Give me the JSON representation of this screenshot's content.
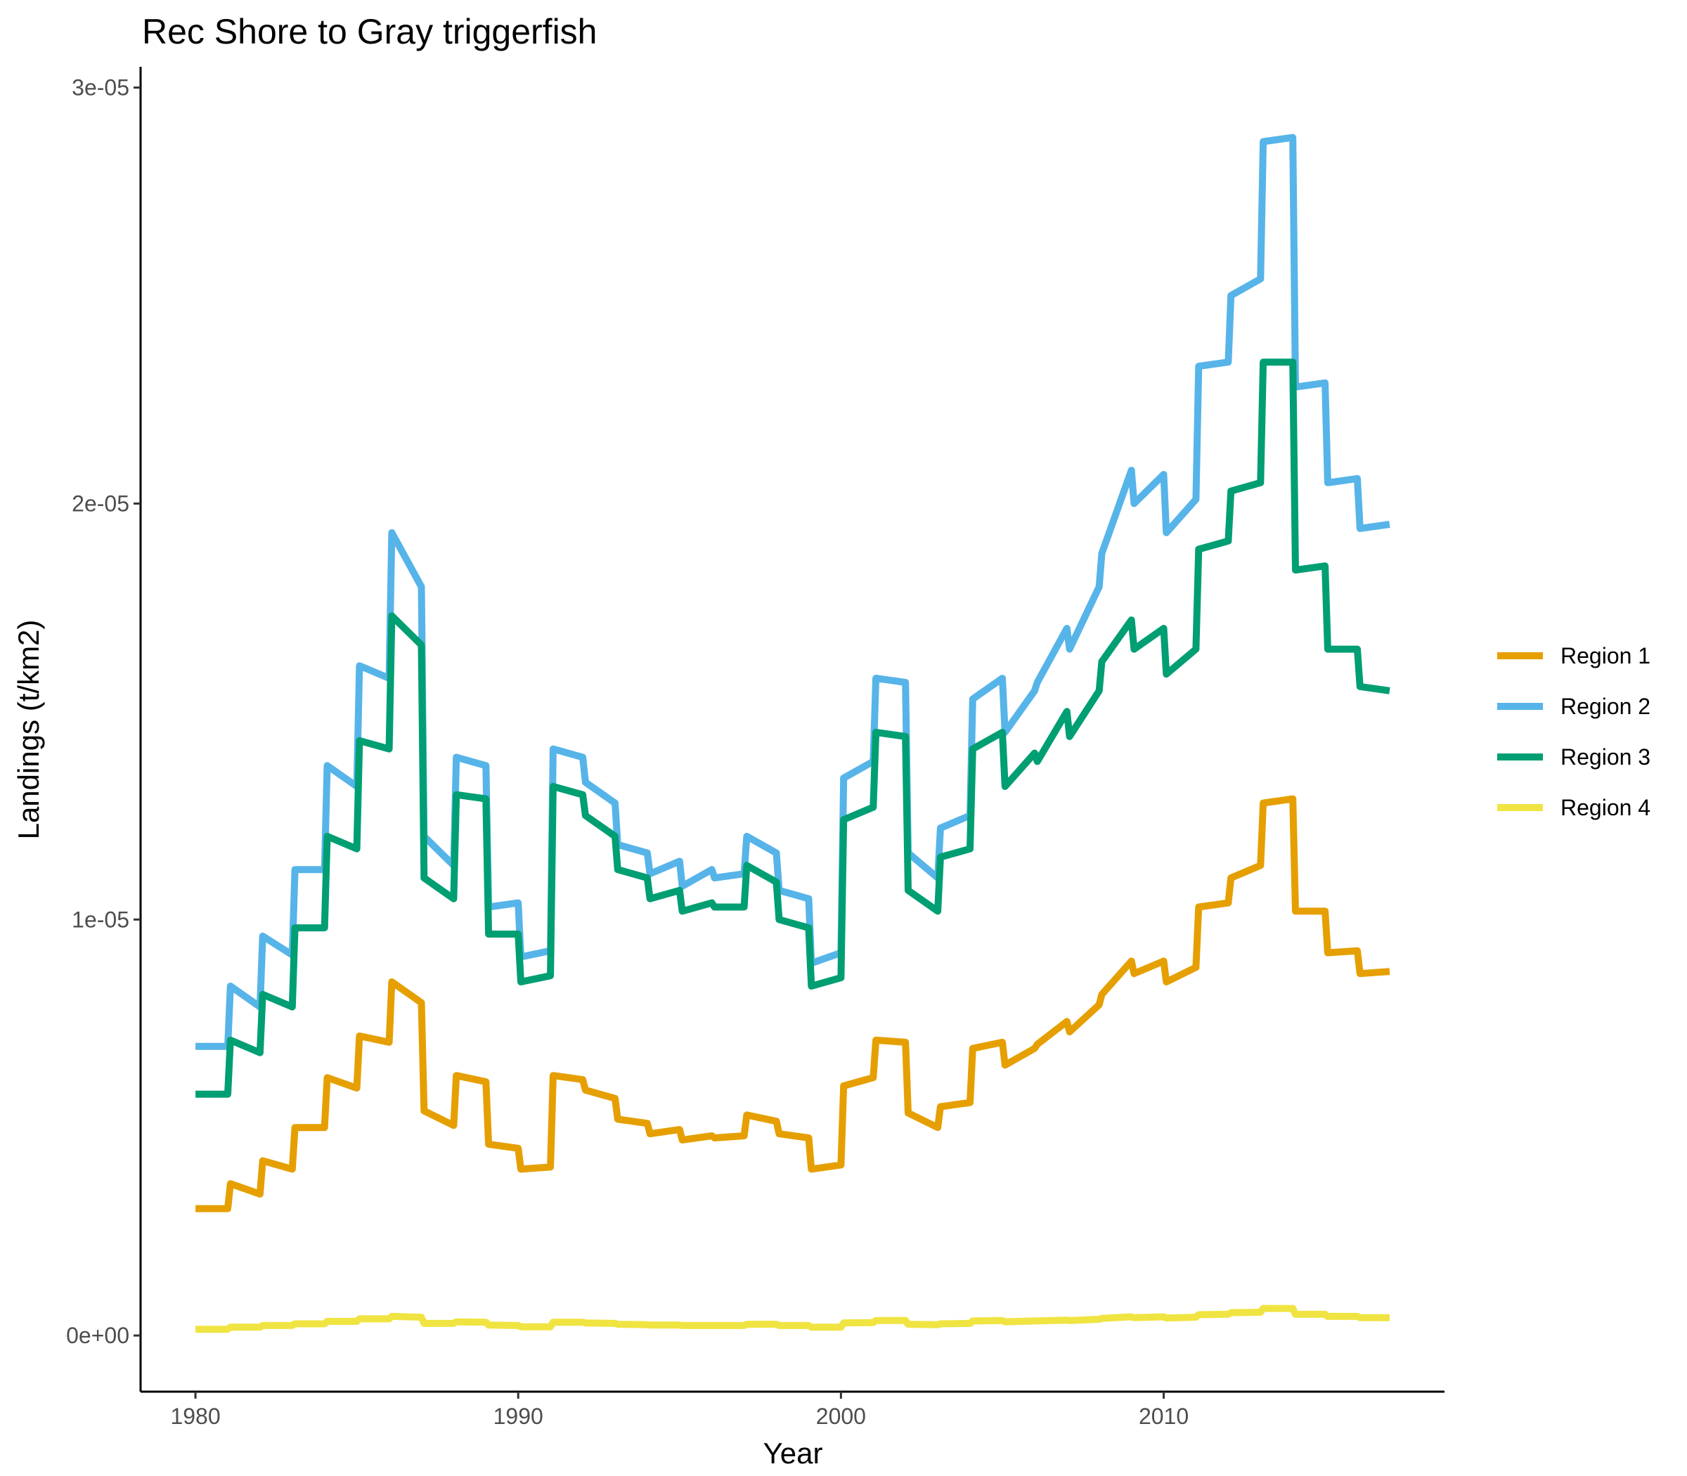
{
  "chart_data": {
    "type": "line",
    "title": "Rec Shore to Gray triggerfish",
    "xlabel": "Year",
    "ylabel": "Landings (t/km2)",
    "xlim": [
      1978.3,
      2018.7
    ],
    "ylim": [
      -1.35e-06,
      3.05e-05
    ],
    "x_ticks": [
      1980,
      1990,
      2000,
      2010
    ],
    "x_tick_labels": [
      "1980",
      "1990",
      "2000",
      "2010"
    ],
    "y_ticks": [
      0,
      1e-05,
      2e-05,
      3e-05
    ],
    "y_tick_labels": [
      "0e+00",
      "1e-05",
      "2e-05",
      "3e-05"
    ],
    "grid": false,
    "legend_position": "right",
    "x": [
      1980.0,
      1981.0,
      1981.083,
      1982.0,
      1982.083,
      1983.0,
      1983.083,
      1984.0,
      1984.083,
      1985.0,
      1985.083,
      1986.0,
      1986.083,
      1987.0,
      1987.083,
      1988.0,
      1988.083,
      1989.0,
      1989.083,
      1990.0,
      1990.083,
      1991.0,
      1991.083,
      1992.0,
      1992.083,
      1993.0,
      1993.083,
      1994.0,
      1994.083,
      1995.0,
      1995.083,
      1996.0,
      1996.083,
      1997.0,
      1997.083,
      1998.0,
      1998.083,
      1999.0,
      1999.083,
      2000.0,
      2000.083,
      2001.0,
      2001.083,
      2002.0,
      2002.083,
      2003.0,
      2003.083,
      2004.0,
      2004.083,
      2005.0,
      2005.083,
      2006.0,
      2006.083,
      2007.0,
      2007.083,
      2008.0,
      2008.083,
      2009.0,
      2009.083,
      2010.0,
      2010.083,
      2011.0,
      2011.083,
      2012.0,
      2012.083,
      2013.0,
      2013.083,
      2014.0,
      2014.083,
      2015.0,
      2015.083,
      2016.0,
      2016.083,
      2017.0
    ],
    "series": [
      {
        "name": "Region 1",
        "color": "#E69F00",
        "values": [
          3.05e-06,
          3.05e-06,
          3.65e-06,
          3.4e-06,
          4.2e-06,
          4e-06,
          5e-06,
          5e-06,
          6.2e-06,
          5.95e-06,
          7.2e-06,
          7.05e-06,
          8.5e-06,
          8e-06,
          5.4e-06,
          5.05e-06,
          6.25e-06,
          6.1e-06,
          4.6e-06,
          4.5e-06,
          4e-06,
          4.05e-06,
          6.25e-06,
          6.15e-06,
          5.9e-06,
          5.7e-06,
          5.2e-06,
          5.1e-06,
          4.85e-06,
          4.95e-06,
          4.7e-06,
          4.8e-06,
          4.75e-06,
          4.8e-06,
          5.3e-06,
          5.15e-06,
          4.85e-06,
          4.75e-06,
          4e-06,
          4.1e-06,
          6e-06,
          6.2e-06,
          7.1e-06,
          7.05e-06,
          5.35e-06,
          5e-06,
          5.5e-06,
          5.6e-06,
          6.9e-06,
          7.05e-06,
          6.5e-06,
          6.9e-06,
          7e-06,
          7.55e-06,
          7.3e-06,
          7.95e-06,
          8.2e-06,
          9e-06,
          8.7e-06,
          9e-06,
          8.5e-06,
          8.85e-06,
          1.03e-05,
          1.04e-05,
          1.1e-05,
          1.13e-05,
          1.28e-05,
          1.29e-05,
          1.02e-05,
          1.02e-05,
          9.2e-06,
          9.25e-06,
          8.7e-06,
          8.75e-06
        ]
      },
      {
        "name": "Region 2",
        "color": "#56B4E9",
        "values": [
          6.95e-06,
          6.95e-06,
          8.4e-06,
          7.9e-06,
          9.6e-06,
          9.15e-06,
          1.12e-05,
          1.12e-05,
          1.37e-05,
          1.32e-05,
          1.61e-05,
          1.58e-05,
          1.93e-05,
          1.8e-05,
          1.2e-05,
          1.13e-05,
          1.39e-05,
          1.37e-05,
          1.03e-05,
          1.04e-05,
          9.1e-06,
          9.25e-06,
          1.41e-05,
          1.39e-05,
          1.33e-05,
          1.28e-05,
          1.18e-05,
          1.16e-05,
          1.11e-05,
          1.14e-05,
          1.08e-05,
          1.12e-05,
          1.1e-05,
          1.11e-05,
          1.2e-05,
          1.16e-05,
          1.07e-05,
          1.05e-05,
          8.95e-06,
          9.2e-06,
          1.34e-05,
          1.38e-05,
          1.58e-05,
          1.57e-05,
          1.16e-05,
          1.1e-05,
          1.22e-05,
          1.25e-05,
          1.53e-05,
          1.58e-05,
          1.45e-05,
          1.55e-05,
          1.57e-05,
          1.7e-05,
          1.65e-05,
          1.8e-05,
          1.88e-05,
          2.08e-05,
          2e-05,
          2.07e-05,
          1.93e-05,
          2.01e-05,
          2.33e-05,
          2.34e-05,
          2.5e-05,
          2.54e-05,
          2.87e-05,
          2.88e-05,
          2.28e-05,
          2.29e-05,
          2.05e-05,
          2.06e-05,
          1.94e-05,
          1.95e-05
        ]
      },
      {
        "name": "Region 3",
        "color": "#009E73",
        "values": [
          5.8e-06,
          5.8e-06,
          7.1e-06,
          6.8e-06,
          8.2e-06,
          7.9e-06,
          9.8e-06,
          9.8e-06,
          1.2e-05,
          1.17e-05,
          1.43e-05,
          1.41e-05,
          1.73e-05,
          1.66e-05,
          1.1e-05,
          1.05e-05,
          1.3e-05,
          1.29e-05,
          9.65e-06,
          9.65e-06,
          8.5e-06,
          8.65e-06,
          1.32e-05,
          1.3e-05,
          1.25e-05,
          1.2e-05,
          1.12e-05,
          1.1e-05,
          1.05e-05,
          1.07e-05,
          1.02e-05,
          1.04e-05,
          1.03e-05,
          1.03e-05,
          1.13e-05,
          1.09e-05,
          1e-05,
          9.8e-06,
          8.4e-06,
          8.6e-06,
          1.24e-05,
          1.27e-05,
          1.45e-05,
          1.44e-05,
          1.07e-05,
          1.02e-05,
          1.15e-05,
          1.17e-05,
          1.41e-05,
          1.45e-05,
          1.32e-05,
          1.4e-05,
          1.38e-05,
          1.5e-05,
          1.44e-05,
          1.55e-05,
          1.62e-05,
          1.72e-05,
          1.65e-05,
          1.7e-05,
          1.59e-05,
          1.65e-05,
          1.89e-05,
          1.91e-05,
          2.03e-05,
          2.05e-05,
          2.34e-05,
          2.34e-05,
          1.84e-05,
          1.85e-05,
          1.65e-05,
          1.65e-05,
          1.56e-05,
          1.55e-05
        ]
      },
      {
        "name": "Region 4",
        "color": "#F0E442",
        "values": [
          1.5e-07,
          1.5e-07,
          2e-07,
          2e-07,
          2.4e-07,
          2.4e-07,
          2.8e-07,
          2.8e-07,
          3.4e-07,
          3.4e-07,
          4e-07,
          4e-07,
          4.6e-07,
          4.4e-07,
          2.9e-07,
          2.9e-07,
          3.3e-07,
          3.2e-07,
          2.5e-07,
          2.4e-07,
          2.1e-07,
          2.1e-07,
          3.2e-07,
          3.2e-07,
          3e-07,
          2.9e-07,
          2.7e-07,
          2.6e-07,
          2.5e-07,
          2.5e-07,
          2.4e-07,
          2.4e-07,
          2.4e-07,
          2.4e-07,
          2.7e-07,
          2.7e-07,
          2.4e-07,
          2.4e-07,
          2e-07,
          2e-07,
          3e-07,
          3.1e-07,
          3.6e-07,
          3.6e-07,
          2.7e-07,
          2.6e-07,
          2.8e-07,
          2.9e-07,
          3.5e-07,
          3.6e-07,
          3.3e-07,
          3.5e-07,
          3.5e-07,
          3.7e-07,
          3.6e-07,
          3.9e-07,
          4.1e-07,
          4.5e-07,
          4.3e-07,
          4.5e-07,
          4.2e-07,
          4.4e-07,
          5e-07,
          5.1e-07,
          5.5e-07,
          5.6e-07,
          6.5e-07,
          6.5e-07,
          5.1e-07,
          5.1e-07,
          4.6e-07,
          4.6e-07,
          4.3e-07,
          4.3e-07
        ]
      }
    ]
  }
}
